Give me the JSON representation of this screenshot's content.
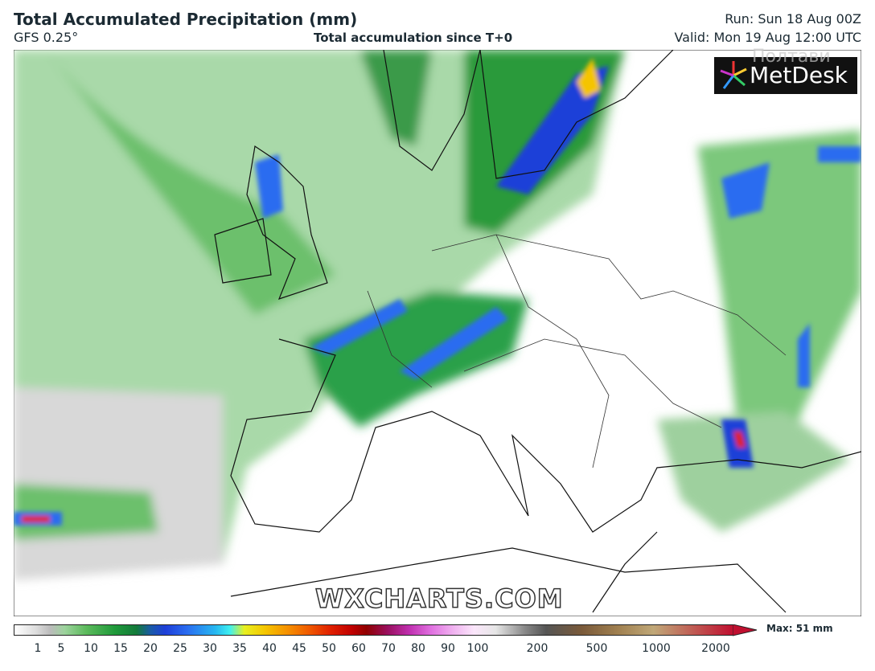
{
  "header": {
    "title": "Total Accumulated Precipitation (mm)",
    "model": "GFS 0.25°",
    "subtitle": "Total accumulation since T+0",
    "run": "Run: Sun 18 Aug 00Z",
    "valid": "Valid: Mon 19 Aug 12:00 UTC"
  },
  "map": {
    "watermark": "WXCHARTS.COM",
    "logo": "MetDesk",
    "overlay_text": "Полтави"
  },
  "legend": {
    "ticks": [
      1,
      5,
      10,
      15,
      20,
      25,
      30,
      35,
      40,
      45,
      50,
      60,
      70,
      80,
      90,
      100,
      200,
      500,
      1000,
      2000
    ],
    "max": "Max: 51 mm"
  }
}
